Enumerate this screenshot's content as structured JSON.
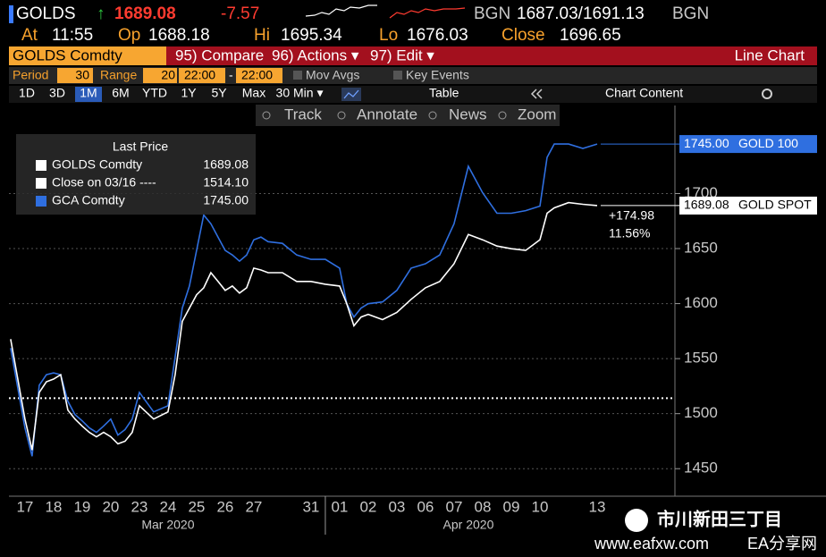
{
  "header": {
    "ticker": "GOLDS",
    "arrow": "↑",
    "last": "1689.08",
    "change": "-7.57",
    "bid_label": "BGN",
    "quote": "1687.03/1691.13",
    "ask_label": "BGN",
    "stats": [
      {
        "label": "At",
        "value": "11:55"
      },
      {
        "label": "Op",
        "value": "1688.18"
      },
      {
        "label": "Hi",
        "value": "1695.34"
      },
      {
        "label": "Lo",
        "value": "1676.03"
      },
      {
        "label": "Close",
        "value": "1696.65"
      }
    ]
  },
  "toolbar": {
    "security": "GOLDS Comdty",
    "menus": [
      "95) Compare",
      "96) Actions ▾",
      "97) Edit ▾"
    ],
    "view": "Line Chart"
  },
  "settings": {
    "period_label": "Period",
    "period": "30",
    "range_label": "Range",
    "range": "20",
    "from": "22:00",
    "dash": "-",
    "to": "22:00",
    "options": [
      "Mov Avgs",
      "Key Events"
    ]
  },
  "ranges": {
    "buttons": [
      "1D",
      "3D",
      "1M",
      "6M",
      "YTD",
      "1Y",
      "5Y",
      "Max",
      "30 Min ▾"
    ],
    "table": "Table",
    "content": "Chart Content"
  },
  "chart_tools": [
    "Track",
    "Annotate",
    "News",
    "Zoom"
  ],
  "chart_data": {
    "type": "line",
    "legend_title": "Last Price",
    "categories": [
      "17",
      "18",
      "19",
      "20",
      "23",
      "24",
      "25",
      "26",
      "27",
      null,
      "31",
      "01",
      "02",
      "03",
      "06",
      "07",
      "08",
      "09",
      "10",
      null,
      "13"
    ],
    "months": [
      "Mar 2020",
      "Apr 2020"
    ],
    "x": [
      -0.5,
      0,
      0.25,
      0.5,
      0.75,
      1,
      1.25,
      1.5,
      1.75,
      2,
      2.25,
      2.5,
      2.75,
      3,
      3.25,
      3.5,
      3.75,
      4,
      4.5,
      5,
      5.25,
      5.5,
      5.75,
      6,
      6.25,
      6.5,
      6.75,
      7,
      7.25,
      7.5,
      7.75,
      8,
      8.25,
      8.5,
      9,
      9.5,
      10,
      10.5,
      11,
      11.25,
      11.5,
      11.75,
      12,
      12.5,
      13,
      13.5,
      14,
      14.5,
      15,
      15.5,
      16,
      16.5,
      17,
      17.5,
      18,
      18.25,
      18.5,
      19,
      19.5,
      20
    ],
    "xlim": [
      -0.56,
      22.72
    ],
    "ylim": [
      1425,
      1780
    ],
    "yticks": [
      1450,
      1500,
      1550,
      1600,
      1650,
      1700
    ],
    "grid": true,
    "series": [
      {
        "name": "GOLDS Comdty",
        "color": "#ffffff",
        "last_label": "1689.08",
        "tag": "GOLD SPOT",
        "values": [
          1567.7,
          1495.1,
          1466.9,
          1519.3,
          1529.0,
          1531.4,
          1535.4,
          1503.2,
          1495.1,
          1488.7,
          1483.0,
          1479.0,
          1483.0,
          1479.0,
          1472.6,
          1475.0,
          1483.0,
          1507.2,
          1495.1,
          1501.6,
          1535.4,
          1583.8,
          1595.9,
          1608.0,
          1614.4,
          1628.1,
          1620.1,
          1612.0,
          1616.0,
          1609.6,
          1614.4,
          1632.2,
          1630.5,
          1628.1,
          1628.1,
          1620.1,
          1620.1,
          1617.6,
          1616.0,
          1599.9,
          1579.8,
          1587.8,
          1590.2,
          1585.4,
          1591.9,
          1603.9,
          1614.4,
          1620.1,
          1636.2,
          1662.8,
          1658.0,
          1652.3,
          1649.9,
          1648.3,
          1658.0,
          1682.1,
          1687.0,
          1691.8,
          1690.2,
          1689.08
        ]
      },
      {
        "name": "GCA Comdty",
        "color": "#2f6fe0",
        "last_label": "1745.00",
        "tag": "GOLD 100",
        "values": [
          1559.6,
          1487.1,
          1461.3,
          1525.8,
          1535.4,
          1537.0,
          1535.4,
          1511.3,
          1499.2,
          1493.5,
          1487.1,
          1483.0,
          1488.7,
          1495.1,
          1480.6,
          1485.5,
          1495.1,
          1519.3,
          1501.6,
          1507.2,
          1551.6,
          1595.9,
          1616.0,
          1648.3,
          1680.5,
          1672.5,
          1660.4,
          1648.3,
          1644.2,
          1638.6,
          1644.2,
          1658.0,
          1660.4,
          1656.3,
          1654.7,
          1644.2,
          1640.2,
          1640.2,
          1632.2,
          1599.9,
          1587.8,
          1595.9,
          1599.9,
          1601.5,
          1612.0,
          1632.2,
          1636.2,
          1644.2,
          1672.5,
          1724.8,
          1700.7,
          1682.1,
          1682.1,
          1684.5,
          1688.6,
          1732.9,
          1745.0,
          1745.0,
          1741.0,
          1745.0
        ]
      }
    ],
    "reference": {
      "name": "Close on 03/16 ----",
      "value": 1514.1,
      "label": "1514.10"
    },
    "change": {
      "value_label": "+174.98",
      "pct_label": "11.56%"
    }
  },
  "watermark": {
    "name": "市川新田三丁目",
    "site": "www.eafxw.com",
    "brand": "EA分享网"
  }
}
